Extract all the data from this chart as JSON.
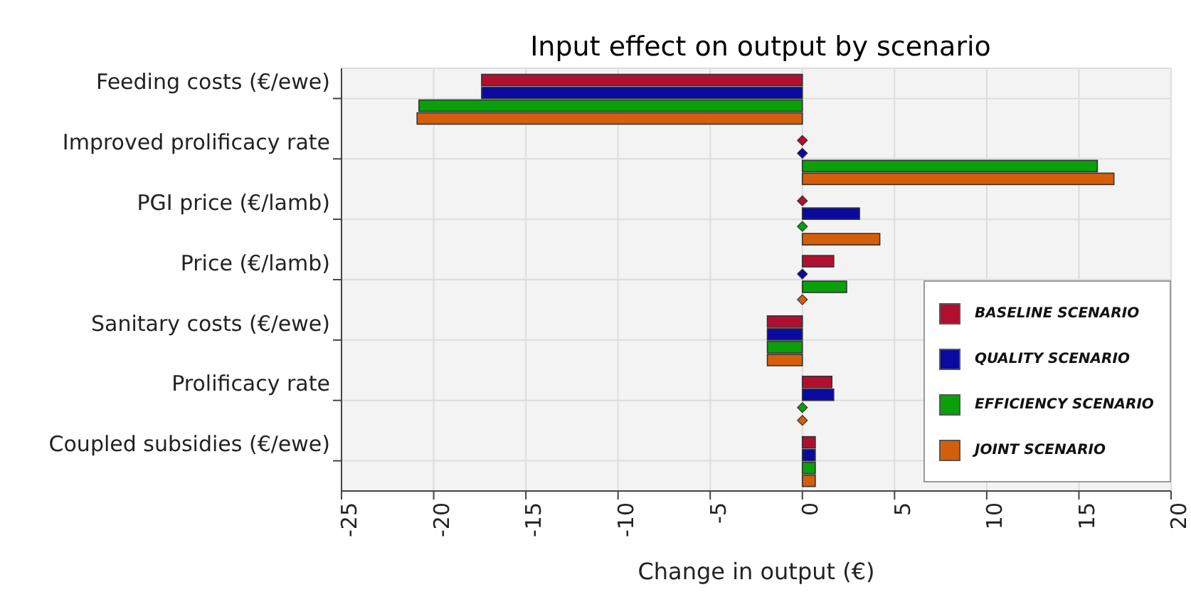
{
  "chart_data": {
    "type": "bar",
    "orientation": "horizontal",
    "title": "Input effect on output by scenario",
    "xlabel": "Change in output (€)",
    "categories": [
      "Feeding costs (€/ewe)",
      "Improved prolificacy rate",
      "PGI price (€/lamb)",
      "Price (€/lamb)",
      "Sanitary costs (€/ewe)",
      "Prolificacy rate",
      "Coupled subsidies (€/ewe)"
    ],
    "series": [
      {
        "name": "BASELINE SCENARIO",
        "color": "#b0102f",
        "values": [
          -17.4,
          0,
          0,
          1.7,
          -1.9,
          1.6,
          0.7
        ]
      },
      {
        "name": "QUALITY SCENARIO",
        "color": "#0a0aa0",
        "values": [
          -17.4,
          0,
          3.1,
          0,
          -1.9,
          1.7,
          0.7
        ]
      },
      {
        "name": "EFFICIENCY SCENARIO",
        "color": "#0aa00a",
        "values": [
          -20.8,
          16.0,
          0,
          2.4,
          -1.9,
          0,
          0.7
        ]
      },
      {
        "name": "JOINT SCENARIO",
        "color": "#d45f0a",
        "values": [
          -20.9,
          16.9,
          4.2,
          0,
          -1.9,
          0,
          0.7
        ]
      }
    ],
    "xlim": [
      -25,
      20
    ],
    "xticks": [
      -25,
      -20,
      -15,
      -10,
      -5,
      0,
      5,
      10,
      15,
      20
    ],
    "grid": true,
    "legend": "right",
    "marker": "diamond"
  }
}
